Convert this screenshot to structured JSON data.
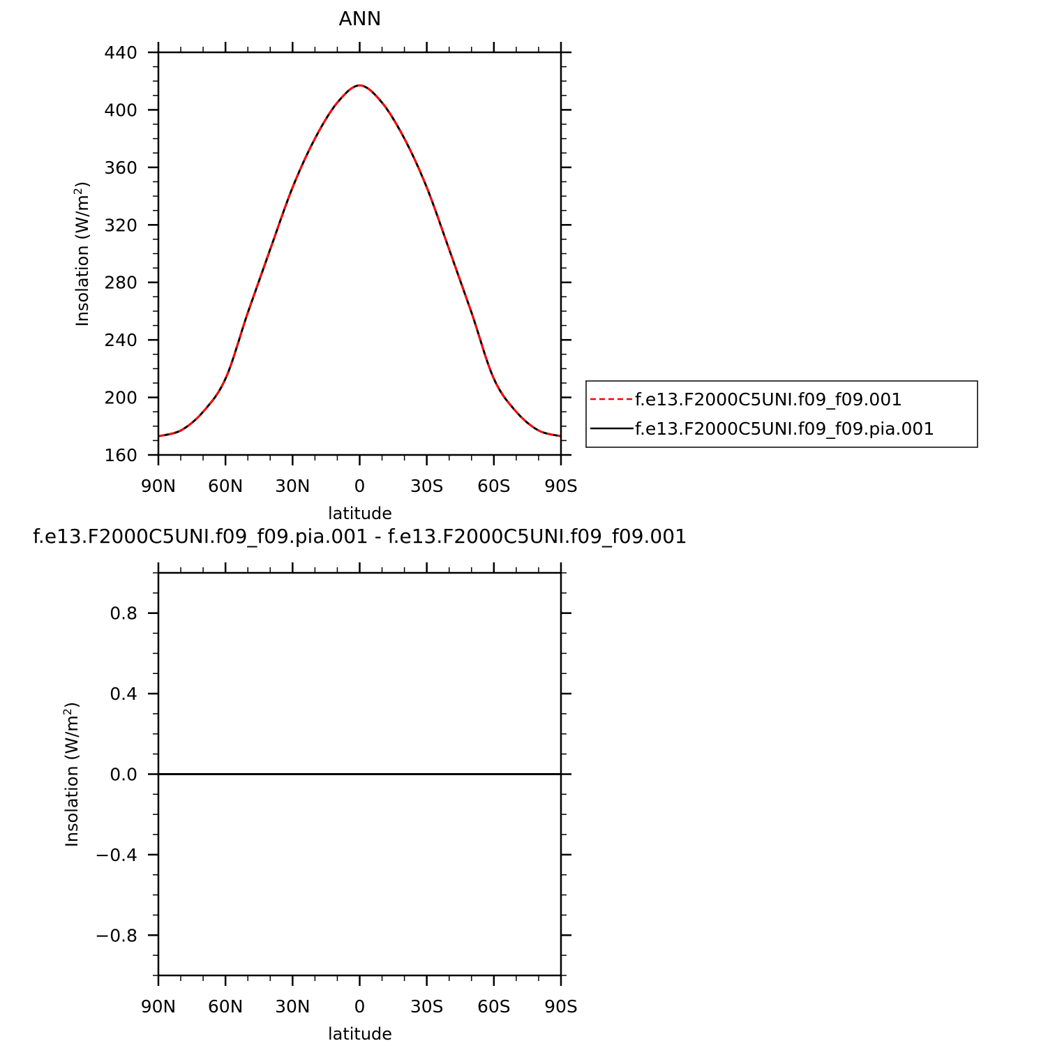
{
  "colors": {
    "model1": "#ff0000",
    "model2": "#000000",
    "diff": "#000000"
  },
  "chart_data": [
    {
      "type": "line",
      "title": "ANN",
      "xlabel": "latitude",
      "ylabel": "Insolation  (W/m",
      "ylabel_sup": "2",
      "ylabel_close": ")",
      "xlim": [
        90,
        -90
      ],
      "ylim": [
        160,
        440
      ],
      "xticks": [
        90,
        60,
        30,
        0,
        -30,
        -60,
        -90
      ],
      "xtick_labels": [
        "90N",
        "60N",
        "30N",
        "0",
        "30S",
        "60S",
        "90S"
      ],
      "yticks": [
        160,
        200,
        240,
        280,
        320,
        360,
        400,
        440
      ],
      "ytick_labels": [
        "160",
        "200",
        "240",
        "280",
        "320",
        "360",
        "400",
        "440"
      ],
      "legend_position": "right",
      "x": [
        90,
        80,
        70,
        60,
        50,
        40,
        30,
        20,
        10,
        0,
        -10,
        -20,
        -30,
        -40,
        -50,
        -60,
        -70,
        -80,
        -90
      ],
      "series": [
        {
          "name": "f.e13.F2000C5UNI.f09_f09.001",
          "style": "dashed",
          "color": "#ff0000",
          "values": [
            173,
            177,
            190,
            213,
            259,
            303,
            346,
            380,
            405,
            417,
            405,
            380,
            346,
            303,
            259,
            213,
            190,
            177,
            173
          ]
        },
        {
          "name": "f.e13.F2000C5UNI.f09_f09.pia.001",
          "style": "solid",
          "color": "#000000",
          "values": [
            173,
            177,
            190,
            213,
            259,
            303,
            346,
            380,
            405,
            417,
            405,
            380,
            346,
            303,
            259,
            213,
            190,
            177,
            173
          ]
        }
      ]
    },
    {
      "type": "line",
      "title": "f.e13.F2000C5UNI.f09_f09.pia.001 - f.e13.F2000C5UNI.f09_f09.001",
      "xlabel": "latitude",
      "ylabel": "Insolation  (W/m",
      "ylabel_sup": "2",
      "ylabel_close": ")",
      "xlim": [
        90,
        -90
      ],
      "ylim": [
        -1,
        1
      ],
      "xticks": [
        90,
        60,
        30,
        0,
        -30,
        -60,
        -90
      ],
      "xtick_labels": [
        "90N",
        "60N",
        "30N",
        "0",
        "30S",
        "60S",
        "90S"
      ],
      "yticks": [
        -0.8,
        -0.4,
        0.0,
        0.4,
        0.8
      ],
      "ytick_labels": [
        "−0.8",
        "−0.4",
        "0.0",
        "0.4",
        "0.8"
      ],
      "x": [
        90,
        -90
      ],
      "series": [
        {
          "style": "solid",
          "color": "#000000",
          "values": [
            0,
            0
          ]
        }
      ]
    }
  ]
}
